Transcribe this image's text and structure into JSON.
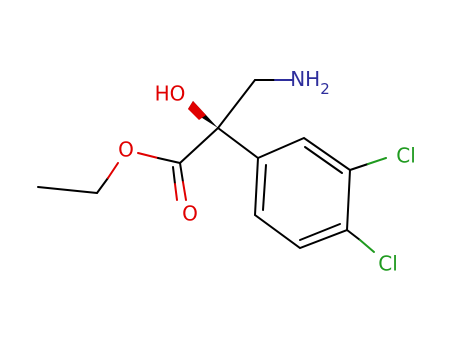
{
  "atoms": [
    {
      "label": "HO"
    },
    {
      "label": "NH",
      "subscript": "2"
    },
    {
      "label": "O"
    },
    {
      "label": "O"
    },
    {
      "label": "Cl"
    },
    {
      "label": "Cl"
    }
  ]
}
